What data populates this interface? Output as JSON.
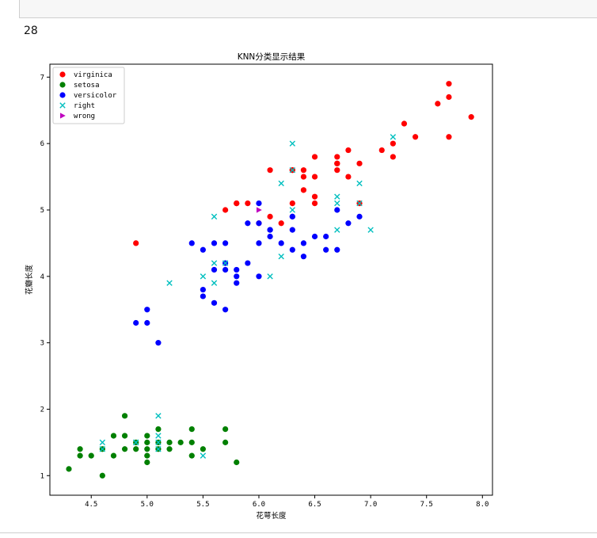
{
  "notebook": {
    "output_number": "28"
  },
  "chart_data": {
    "type": "scatter",
    "title": "KNN分类显示结果",
    "xlabel": "花萼长度",
    "ylabel": "花瓣长度",
    "xlim": [
      4.13,
      8.09
    ],
    "ylim": [
      0.705,
      7.195
    ],
    "xticks": [
      "4.5",
      "5.0",
      "5.5",
      "6.0",
      "6.5",
      "7.0",
      "7.5",
      "8.0"
    ],
    "yticks": [
      "1",
      "2",
      "3",
      "4",
      "5",
      "6",
      "7"
    ],
    "grid": false,
    "legend_position": "top-left",
    "series": [
      {
        "name": "virginica",
        "marker": "circle",
        "color": "#ff0000",
        "x": [
          4.9,
          5.7,
          5.8,
          5.8,
          5.9,
          6.0,
          6.1,
          6.2,
          6.3,
          6.3,
          6.3,
          6.4,
          6.4,
          6.4,
          6.5,
          6.5,
          6.5,
          6.5,
          6.7,
          6.7,
          6.7,
          6.7,
          6.8,
          6.8,
          6.9,
          6.9,
          7.1,
          7.2,
          7.2,
          7.3,
          7.4,
          7.6,
          7.7,
          7.7,
          7.7,
          7.9,
          6.1
        ],
        "y": [
          4.5,
          5.0,
          5.1,
          5.1,
          5.1,
          4.8,
          4.9,
          4.8,
          5.1,
          5.6,
          5.6,
          5.3,
          5.5,
          5.6,
          5.1,
          5.2,
          5.5,
          5.8,
          5.6,
          5.7,
          5.7,
          5.8,
          5.5,
          5.9,
          5.1,
          5.7,
          5.9,
          5.8,
          6.0,
          6.3,
          6.1,
          6.6,
          6.1,
          6.7,
          6.9,
          6.4,
          5.6
        ]
      },
      {
        "name": "setosa",
        "marker": "circle",
        "color": "#008000",
        "x": [
          4.3,
          4.4,
          4.4,
          4.5,
          4.6,
          4.7,
          4.7,
          4.8,
          4.8,
          4.8,
          4.9,
          4.9,
          5.0,
          5.0,
          5.0,
          5.0,
          5.0,
          5.1,
          5.1,
          5.2,
          5.2,
          5.3,
          5.4,
          5.4,
          5.4,
          5.5,
          5.7,
          5.7,
          5.8,
          4.6,
          5.1
        ],
        "y": [
          1.1,
          1.3,
          1.4,
          1.3,
          1.0,
          1.3,
          1.6,
          1.4,
          1.6,
          1.9,
          1.4,
          1.5,
          1.2,
          1.3,
          1.4,
          1.5,
          1.6,
          1.5,
          1.7,
          1.4,
          1.5,
          1.5,
          1.3,
          1.5,
          1.7,
          1.4,
          1.5,
          1.7,
          1.2,
          1.4,
          1.4
        ]
      },
      {
        "name": "versicolor",
        "marker": "circle",
        "color": "#0000ff",
        "x": [
          4.9,
          5.0,
          5.0,
          5.1,
          5.4,
          5.5,
          5.5,
          5.5,
          5.6,
          5.6,
          5.6,
          5.7,
          5.7,
          5.7,
          5.7,
          5.8,
          5.8,
          5.8,
          5.9,
          5.9,
          6.0,
          6.0,
          6.0,
          6.1,
          6.1,
          6.1,
          6.2,
          6.3,
          6.3,
          6.3,
          6.3,
          6.4,
          6.4,
          6.5,
          6.6,
          6.6,
          6.7,
          6.7,
          6.8,
          6.9,
          6.0
        ],
        "y": [
          3.3,
          3.3,
          3.5,
          3.0,
          4.5,
          3.7,
          3.8,
          4.4,
          3.6,
          4.1,
          4.5,
          3.5,
          4.1,
          4.2,
          4.5,
          3.9,
          4.0,
          4.1,
          4.2,
          4.8,
          4.0,
          4.5,
          5.1,
          4.6,
          4.7,
          4.7,
          4.5,
          4.4,
          4.7,
          4.9,
          4.9,
          4.3,
          4.5,
          4.6,
          4.4,
          4.6,
          4.4,
          5.0,
          4.8,
          4.9,
          4.8
        ]
      },
      {
        "name": "right",
        "marker": "x",
        "color": "#00bfbf",
        "x": [
          4.6,
          4.6,
          4.9,
          5.1,
          5.1,
          5.1,
          5.1,
          5.5,
          4.9,
          5.2,
          5.5,
          5.6,
          5.6,
          5.6,
          5.7,
          6.1,
          6.2,
          6.3,
          6.3,
          6.2,
          6.7,
          6.9,
          7.0,
          6.7,
          6.9,
          6.3,
          7.2,
          6.7
        ],
        "y": [
          1.5,
          1.4,
          1.5,
          1.9,
          1.6,
          1.5,
          1.4,
          1.3,
          1.5,
          3.9,
          4.0,
          4.9,
          4.2,
          3.9,
          4.2,
          4.0,
          4.3,
          5.0,
          6.0,
          5.4,
          5.2,
          5.4,
          4.7,
          4.7,
          5.1,
          5.6,
          6.1,
          5.1
        ]
      },
      {
        "name": "wrong",
        "marker": "triangle-right",
        "color": "#bf00bf",
        "x": [
          6.0
        ],
        "y": [
          5.0
        ]
      }
    ]
  }
}
